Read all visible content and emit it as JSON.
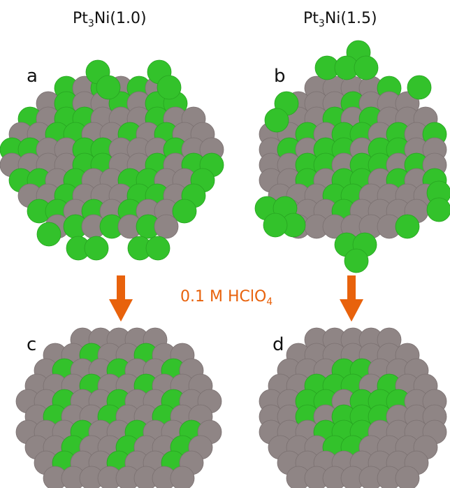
{
  "titles": {
    "left": {
      "base": "Pt",
      "sub": "3",
      "rest": "Ni(1.0)"
    },
    "right": {
      "base": "Pt",
      "sub": "3",
      "rest": "Ni(1.5)"
    }
  },
  "panel_labels": [
    "a",
    "b",
    "c",
    "d"
  ],
  "condition": {
    "base": "0.1 M HClO",
    "sub": "4"
  },
  "colors": {
    "pt_atom": "#8f8585",
    "ni_atom": "#33c22b",
    "arrow": "#e8620c",
    "condition_text": "#e8620c"
  },
  "legend_meaning": {
    "gray": "Pt",
    "green": "Ni"
  }
}
